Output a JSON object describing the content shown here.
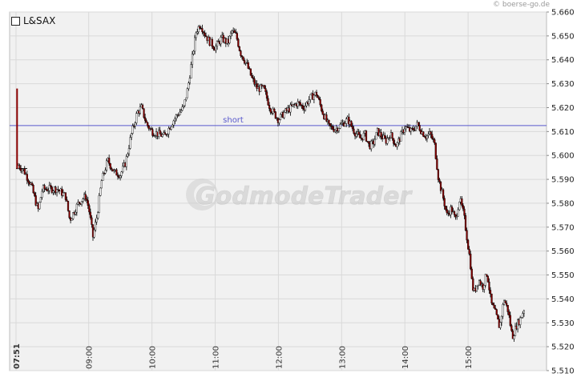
{
  "copyright": "© boerse-go.de",
  "watermark": "GodmodeTrader",
  "chart_data": {
    "type": "candlestick",
    "legend": [
      {
        "label": "L&SAX",
        "marker": "square"
      }
    ],
    "ylim": [
      5.51,
      5.66
    ],
    "y_ticks": [
      "5.510",
      "5.520",
      "5.530",
      "5.540",
      "5.550",
      "5.560",
      "5.570",
      "5.580",
      "5.590",
      "5.600",
      "5.610",
      "5.620",
      "5.630",
      "5.640",
      "5.650",
      "5.660"
    ],
    "x_ticks": [
      "07:51",
      "09:00",
      "10:00",
      "11:00",
      "12:00",
      "13:00",
      "14:00",
      "15:00"
    ],
    "x_domain": [
      "07:51",
      "16:00"
    ],
    "hline": {
      "value": 5.6125,
      "label": "short",
      "color": "#5a5acc"
    },
    "start_marker": {
      "value": 5.5945
    },
    "path_points": [
      [
        "07:51",
        5.5945
      ],
      [
        "07:52",
        5.628
      ],
      [
        "07:53",
        5.596
      ],
      [
        "07:58",
        5.594
      ],
      [
        "08:05",
        5.588
      ],
      [
        "08:12",
        5.577
      ],
      [
        "08:16",
        5.586
      ],
      [
        "08:30",
        5.586
      ],
      [
        "08:38",
        5.583
      ],
      [
        "08:42",
        5.573
      ],
      [
        "08:50",
        5.58
      ],
      [
        "08:57",
        5.583
      ],
      [
        "09:00",
        5.578
      ],
      [
        "09:04",
        5.566
      ],
      [
        "09:08",
        5.575
      ],
      [
        "09:12",
        5.589
      ],
      [
        "09:18",
        5.598
      ],
      [
        "09:24",
        5.593
      ],
      [
        "09:30",
        5.592
      ],
      [
        "09:35",
        5.597
      ],
      [
        "09:40",
        5.608
      ],
      [
        "09:46",
        5.618
      ],
      [
        "09:50",
        5.62
      ],
      [
        "09:55",
        5.613
      ],
      [
        "10:00",
        5.61
      ],
      [
        "10:06",
        5.609
      ],
      [
        "10:12",
        5.608
      ],
      [
        "10:18",
        5.613
      ],
      [
        "10:24",
        5.617
      ],
      [
        "10:30",
        5.62
      ],
      [
        "10:34",
        5.628
      ],
      [
        "10:38",
        5.64
      ],
      [
        "10:42",
        5.652
      ],
      [
        "10:46",
        5.655
      ],
      [
        "10:50",
        5.651
      ],
      [
        "10:54",
        5.648
      ],
      [
        "11:00",
        5.645
      ],
      [
        "11:06",
        5.649
      ],
      [
        "11:12",
        5.647
      ],
      [
        "11:16",
        5.652
      ],
      [
        "11:20",
        5.65
      ],
      [
        "11:24",
        5.643
      ],
      [
        "11:30",
        5.638
      ],
      [
        "11:35",
        5.632
      ],
      [
        "11:40",
        5.628
      ],
      [
        "11:46",
        5.628
      ],
      [
        "11:52",
        5.62
      ],
      [
        "12:00",
        5.615
      ],
      [
        "12:06",
        5.618
      ],
      [
        "12:12",
        5.62
      ],
      [
        "12:18",
        5.622
      ],
      [
        "12:24",
        5.62
      ],
      [
        "12:30",
        5.624
      ],
      [
        "12:36",
        5.626
      ],
      [
        "12:42",
        5.618
      ],
      [
        "12:48",
        5.612
      ],
      [
        "12:54",
        5.611
      ],
      [
        "13:00",
        5.613
      ],
      [
        "13:06",
        5.615
      ],
      [
        "13:12",
        5.61
      ],
      [
        "13:18",
        5.607
      ],
      [
        "13:22",
        5.609
      ],
      [
        "13:26",
        5.604
      ],
      [
        "13:30",
        5.605
      ],
      [
        "13:34",
        5.61
      ],
      [
        "13:38",
        5.608
      ],
      [
        "13:42",
        5.606
      ],
      [
        "13:46",
        5.609
      ],
      [
        "13:52",
        5.604
      ],
      [
        "14:00",
        5.612
      ],
      [
        "14:06",
        5.61
      ],
      [
        "14:12",
        5.613
      ],
      [
        "14:16",
        5.61
      ],
      [
        "14:20",
        5.608
      ],
      [
        "14:24",
        5.609
      ],
      [
        "14:28",
        5.605
      ],
      [
        "14:32",
        5.59
      ],
      [
        "14:36",
        5.583
      ],
      [
        "14:40",
        5.575
      ],
      [
        "14:44",
        5.578
      ],
      [
        "14:48",
        5.573
      ],
      [
        "14:52",
        5.582
      ],
      [
        "14:56",
        5.575
      ],
      [
        "15:00",
        5.562
      ],
      [
        "15:02",
        5.556
      ],
      [
        "15:04",
        5.545
      ],
      [
        "15:06",
        5.543
      ],
      [
        "15:10",
        5.548
      ],
      [
        "15:14",
        5.545
      ],
      [
        "15:18",
        5.551
      ],
      [
        "15:22",
        5.538
      ],
      [
        "15:26",
        5.534
      ],
      [
        "15:30",
        5.528
      ],
      [
        "15:34",
        5.54
      ],
      [
        "15:38",
        5.535
      ],
      [
        "15:42",
        5.524
      ],
      [
        "15:46",
        5.529
      ],
      [
        "15:50",
        5.532
      ],
      [
        "15:54",
        5.537
      ]
    ]
  }
}
